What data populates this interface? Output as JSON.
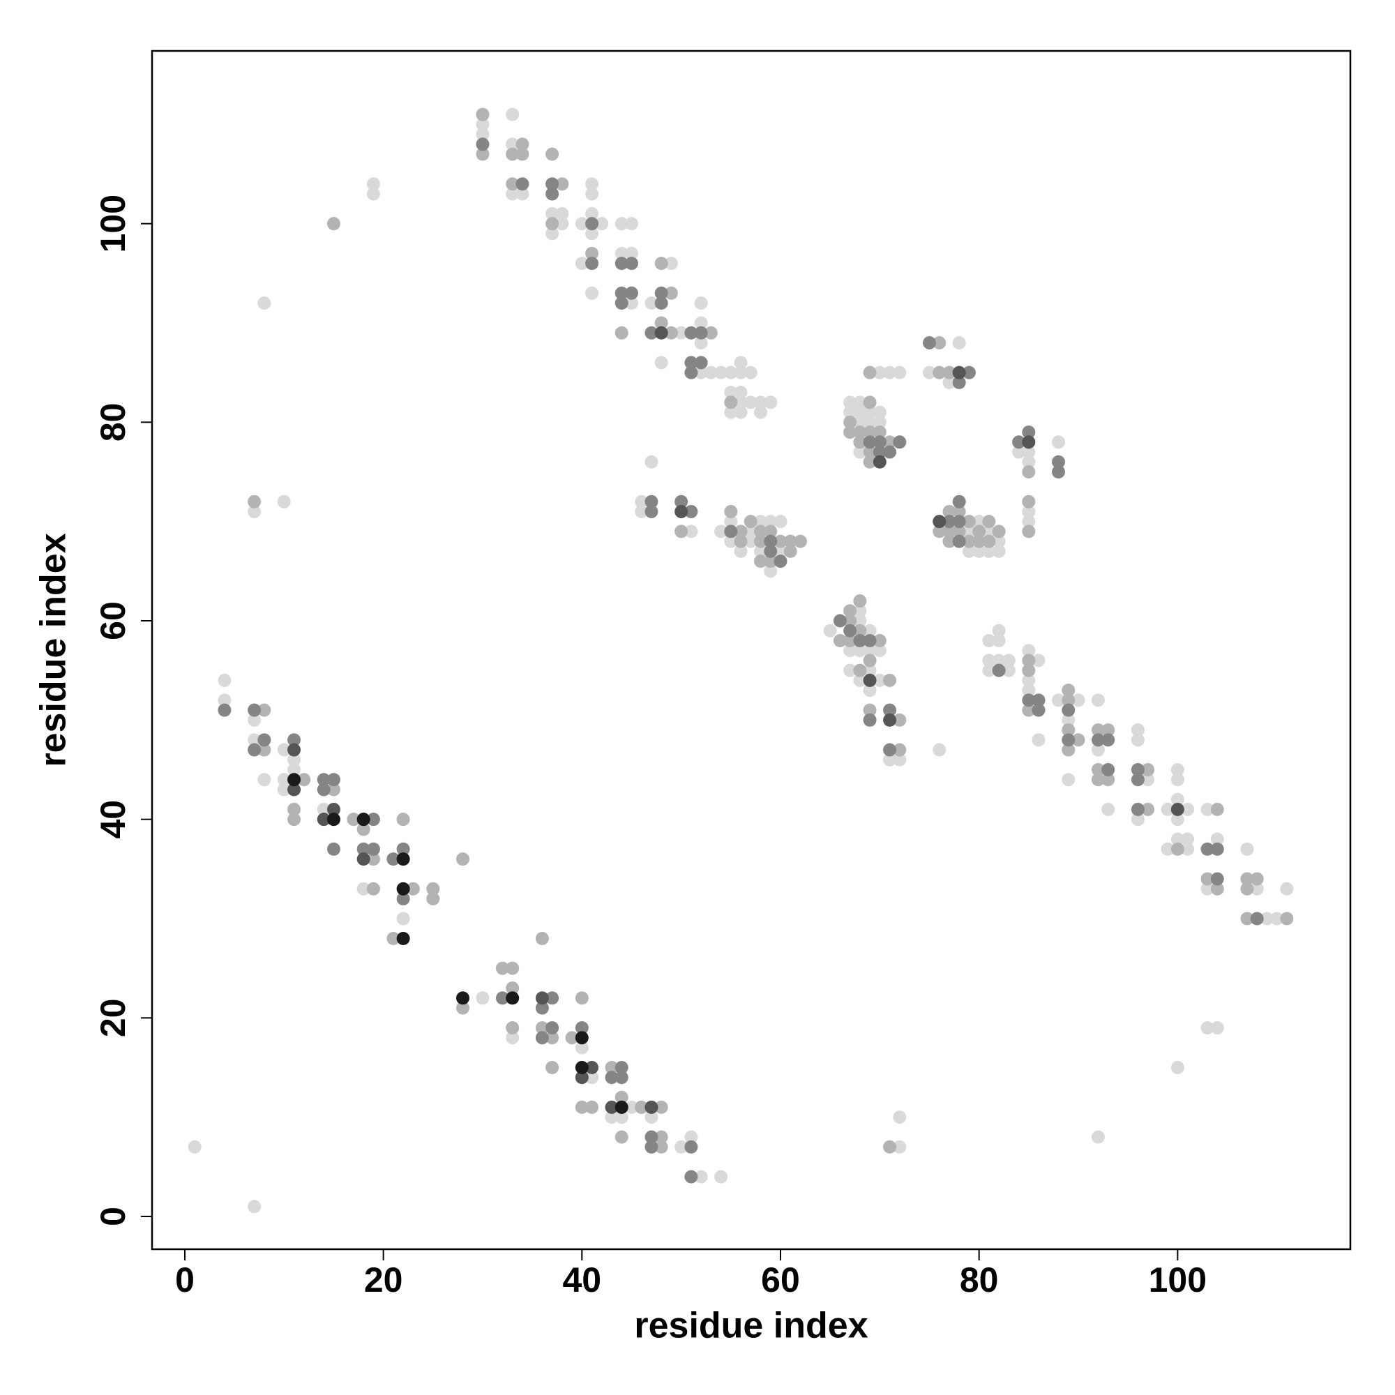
{
  "chart_data": {
    "type": "scatter",
    "x_label": "residue index",
    "y_label": "residue index",
    "xlim": [
      -3.3,
      117.4
    ],
    "ylim": [
      -3.3,
      117.4
    ],
    "xticks": [
      0,
      20,
      40,
      60,
      80,
      100
    ],
    "yticks": [
      0,
      20,
      40,
      60,
      80,
      100
    ],
    "grid": false,
    "series": [
      {
        "color": "#d9d9d9",
        "x": [
          1,
          7,
          4,
          4,
          7,
          7,
          8,
          10,
          10,
          10,
          10,
          11,
          11,
          14,
          18,
          22,
          30,
          33,
          40,
          41,
          43,
          44,
          45,
          47,
          50,
          51,
          52,
          54,
          72,
          72,
          92,
          100,
          103,
          104,
          8,
          19,
          19,
          30,
          30,
          33,
          33,
          33,
          34,
          37,
          37,
          38,
          38,
          40,
          40,
          41,
          41,
          41,
          41,
          41,
          42,
          44,
          44,
          45,
          45,
          45,
          47,
          47,
          48,
          49,
          50,
          52,
          52,
          52,
          52,
          53,
          54,
          55,
          55,
          55,
          56,
          56,
          56,
          56,
          56,
          57,
          57,
          58,
          58,
          59,
          46,
          46,
          51,
          54,
          55,
          55,
          56,
          57,
          57,
          58,
          58,
          59,
          59,
          60,
          60,
          65,
          67,
          67,
          68,
          68,
          68,
          68,
          69,
          69,
          69,
          69,
          70,
          70,
          72,
          76,
          67,
          67,
          68,
          68,
          68,
          68,
          69,
          69,
          70,
          70,
          70,
          71,
          72,
          75,
          77,
          78,
          79,
          79,
          80,
          80,
          81,
          81,
          82,
          82,
          84,
          85,
          85,
          88,
          85,
          85,
          82,
          82,
          81,
          81,
          81,
          82,
          83,
          83,
          85,
          85,
          85,
          86,
          86,
          88,
          89,
          89,
          90,
          92,
          92,
          93,
          96,
          96,
          96,
          97,
          99,
          99,
          100,
          100,
          100,
          100,
          100,
          101,
          101,
          101,
          103,
          103,
          104,
          107,
          108,
          109,
          110,
          111,
          71,
          7
        ],
        "values": [
          7,
          1,
          54,
          52,
          50,
          48,
          44,
          72,
          47,
          44,
          43,
          46,
          45,
          41,
          33,
          30,
          22,
          18,
          17,
          14,
          10,
          10,
          11,
          10,
          7,
          8,
          4,
          4,
          10,
          7,
          8,
          15,
          19,
          19,
          92,
          104,
          103,
          110,
          109,
          111,
          108,
          103,
          103,
          101,
          99,
          101,
          100,
          100,
          96,
          104,
          103,
          101,
          99,
          93,
          100,
          100,
          97,
          100,
          97,
          92,
          92,
          76,
          86,
          96,
          89,
          92,
          90,
          88,
          85,
          85,
          85,
          85,
          83,
          81,
          86,
          85,
          83,
          82,
          81,
          85,
          82,
          82,
          81,
          82,
          72,
          71,
          69,
          69,
          70,
          68,
          67,
          69,
          68,
          70,
          67,
          70,
          65,
          67,
          70,
          59,
          57,
          55,
          61,
          60,
          57,
          54,
          59,
          57,
          55,
          53,
          57,
          54,
          46,
          47,
          82,
          81,
          82,
          81,
          80,
          77,
          81,
          80,
          85,
          81,
          80,
          85,
          85,
          85,
          84,
          88,
          69,
          67,
          70,
          67,
          69,
          67,
          68,
          67,
          77,
          77,
          76,
          78,
          71,
          70,
          59,
          58,
          58,
          56,
          55,
          56,
          56,
          55,
          57,
          54,
          53,
          56,
          48,
          52,
          50,
          44,
          52,
          52,
          47,
          41,
          49,
          48,
          40,
          44,
          41,
          37,
          45,
          44,
          42,
          40,
          38,
          41,
          38,
          37,
          41,
          33,
          38,
          37,
          33,
          30,
          30,
          33,
          46,
          71
        ]
      },
      {
        "color": "#b3b3b3",
        "x": [
          7,
          8,
          8,
          11,
          11,
          12,
          15,
          17,
          18,
          19,
          19,
          21,
          22,
          23,
          25,
          25,
          28,
          28,
          32,
          33,
          33,
          33,
          36,
          36,
          37,
          37,
          39,
          40,
          40,
          41,
          43,
          44,
          44,
          46,
          48,
          48,
          48,
          71,
          15,
          30,
          30,
          33,
          34,
          34,
          33,
          37,
          37,
          38,
          41,
          44,
          48,
          48,
          49,
          49,
          53,
          55,
          50,
          55,
          56,
          56,
          57,
          58,
          58,
          58,
          59,
          59,
          60,
          61,
          61,
          62,
          66,
          67,
          67,
          67,
          68,
          68,
          68,
          69,
          69,
          70,
          71,
          72,
          72,
          67,
          67,
          68,
          68,
          69,
          69,
          69,
          69,
          69,
          70,
          71,
          76,
          76,
          77,
          76,
          77,
          77,
          77,
          78,
          78,
          79,
          79,
          80,
          80,
          81,
          81,
          82,
          85,
          85,
          85,
          85,
          85,
          85,
          89,
          89,
          89,
          89,
          90,
          92,
          92,
          92,
          93,
          93,
          97,
          97,
          100,
          103,
          104,
          104,
          107,
          107,
          107,
          108,
          111
        ],
        "values": [
          72,
          51,
          47,
          41,
          40,
          44,
          43,
          40,
          39,
          36,
          33,
          28,
          40,
          33,
          33,
          32,
          36,
          21,
          25,
          25,
          23,
          19,
          28,
          19,
          18,
          15,
          18,
          22,
          11,
          11,
          15,
          12,
          8,
          11,
          11,
          8,
          7,
          7,
          100,
          111,
          107,
          107,
          108,
          107,
          104,
          107,
          100,
          104,
          97,
          89,
          96,
          90,
          93,
          89,
          89,
          82,
          69,
          71,
          69,
          68,
          70,
          69,
          68,
          66,
          69,
          66,
          68,
          68,
          67,
          68,
          58,
          61,
          60,
          58,
          62,
          59,
          55,
          56,
          51,
          58,
          54,
          50,
          47,
          80,
          79,
          79,
          78,
          85,
          82,
          79,
          77,
          76,
          79,
          78,
          88,
          85,
          85,
          69,
          71,
          69,
          68,
          71,
          69,
          70,
          68,
          69,
          68,
          70,
          68,
          69,
          75,
          72,
          69,
          56,
          55,
          51,
          53,
          52,
          49,
          47,
          48,
          49,
          45,
          44,
          49,
          44,
          45,
          41,
          37,
          34,
          41,
          33,
          34,
          33,
          30,
          34,
          30
        ]
      },
      {
        "color": "#858585",
        "x": [
          4,
          7,
          7,
          8,
          11,
          14,
          14,
          15,
          15,
          18,
          19,
          19,
          21,
          22,
          22,
          32,
          36,
          36,
          37,
          37,
          40,
          43,
          44,
          44,
          47,
          47,
          51,
          51,
          30,
          34,
          37,
          37,
          41,
          41,
          44,
          44,
          44,
          45,
          45,
          47,
          48,
          48,
          51,
          51,
          51,
          52,
          52,
          47,
          47,
          50,
          51,
          55,
          59,
          59,
          60,
          66,
          67,
          68,
          69,
          69,
          71,
          71,
          69,
          70,
          70,
          71,
          72,
          75,
          78,
          79,
          77,
          78,
          78,
          78,
          84,
          85,
          88,
          88,
          82,
          85,
          86,
          86,
          89,
          89,
          92,
          93,
          93,
          96,
          96,
          96,
          103,
          104,
          104,
          108
        ],
        "values": [
          51,
          51,
          47,
          48,
          48,
          44,
          43,
          44,
          37,
          37,
          40,
          37,
          36,
          37,
          32,
          22,
          21,
          18,
          22,
          19,
          19,
          14,
          15,
          14,
          8,
          7,
          7,
          4,
          108,
          104,
          104,
          103,
          100,
          96,
          96,
          93,
          92,
          96,
          93,
          89,
          93,
          92,
          89,
          86,
          85,
          89,
          86,
          72,
          71,
          72,
          71,
          69,
          68,
          67,
          66,
          60,
          59,
          58,
          58,
          50,
          51,
          47,
          78,
          78,
          77,
          77,
          78,
          88,
          84,
          85,
          70,
          72,
          70,
          68,
          78,
          79,
          76,
          75,
          55,
          52,
          52,
          51,
          51,
          48,
          48,
          48,
          45,
          45,
          44,
          41,
          37,
          37,
          34,
          30
        ]
      },
      {
        "color": "#555555",
        "x": [
          11,
          11,
          14,
          15,
          18,
          36,
          40,
          41,
          43,
          47,
          48,
          50,
          69,
          71,
          70,
          78,
          76,
          85,
          100
        ],
        "values": [
          47,
          43,
          40,
          41,
          36,
          22,
          14,
          15,
          11,
          11,
          89,
          71,
          54,
          50,
          76,
          85,
          70,
          78,
          41
        ]
      },
      {
        "color": "#1a1a1a",
        "x": [
          11,
          15,
          18,
          22,
          22,
          22,
          28,
          33,
          40,
          40,
          44
        ],
        "values": [
          44,
          40,
          40,
          36,
          33,
          28,
          22,
          22,
          18,
          15,
          11
        ]
      }
    ]
  }
}
